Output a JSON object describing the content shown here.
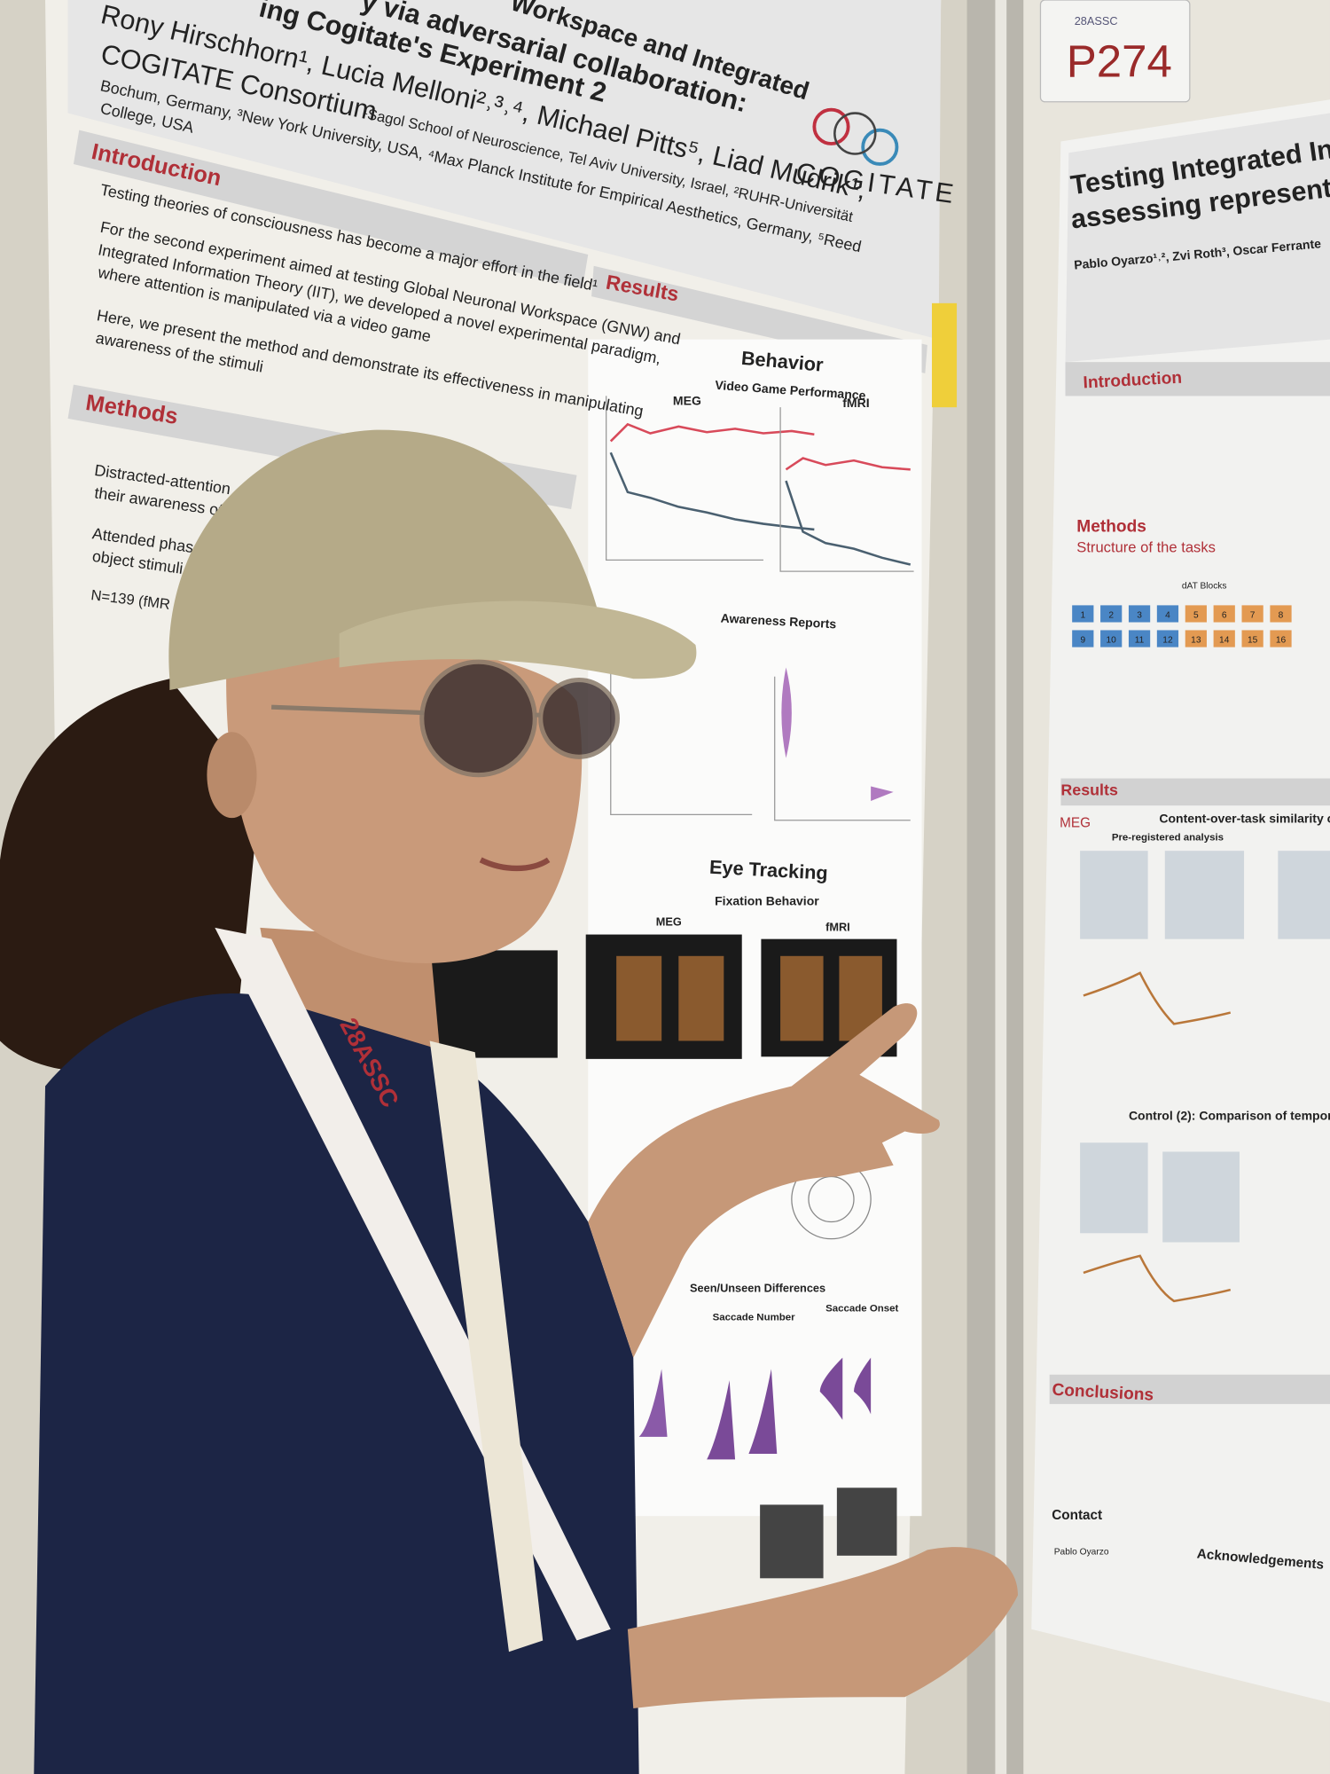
{
  "left_poster": {
    "title_lines": [
      "Workspace and Integrated",
      "y via adversarial collaboration:",
      "ing Cogitate's Experiment 2"
    ],
    "authors": "Rony Hirschhorn¹, Lucia Melloni²˒³˒⁴, Michael Pitts⁵, Liad Mudrik¹,",
    "consortium": "COGITATE Consortium",
    "affiliations": [
      "¹Sagol School of Neuroscience, Tel Aviv University, Israel, ²RUHR-Universität",
      "Bochum, Germany, ³New York University, USA, ⁴Max Planck Institute for Empirical Aesthetics, Germany, ⁵Reed",
      "College, USA"
    ],
    "logo": "COGITATE",
    "introduction": {
      "heading": "Introduction",
      "lines": [
        "Testing theories of consciousness has become a major effort in the field¹",
        "For the second experiment aimed at testing Global Neuronal Workspace (GNW) and",
        "Integrated Information Theory (IIT), we developed a novel experimental paradigm,",
        "where attention is manipulated via a video game",
        "Here, we present the method and demonstrate its effectiveness in manipulating",
        "awareness of the stimuli"
      ]
    },
    "methods": {
      "heading": "Methods",
      "lines": [
        "Distracted-attention",
        "their awareness of",
        "Attended phas",
        "object stimuli",
        "N=139 (fMR"
      ]
    },
    "results": {
      "heading": "Results",
      "behavior": "Behavior",
      "video_game": "Video Game Performance",
      "meg": "MEG",
      "fmri": "fMRI",
      "awareness": "Awareness Reports",
      "eye_tracking": "Eye Tracking",
      "fixation": "Fixation Behavior",
      "seen_unseen": "Seen/Unseen Differences",
      "saccade_number": "Saccade Number",
      "saccade_onset": "Saccade Onset"
    }
  },
  "sign": {
    "conference": "28ASSC",
    "number": "P274"
  },
  "right_poster": {
    "title_lines": [
      "Testing Integrated In",
      "assessing representa"
    ],
    "authors": "Pablo Oyarzo¹˒², Zvi Roth³, Oscar Ferrante",
    "introduction": "Introduction",
    "methods": "Methods",
    "structure": "Structure of the tasks",
    "blocks_label": "dAT Blocks",
    "blocks": [
      "1",
      "2",
      "3",
      "4",
      "5",
      "6",
      "7",
      "8",
      "9",
      "10",
      "11",
      "12",
      "13",
      "14",
      "15",
      "16"
    ],
    "results": "Results",
    "meg": "MEG",
    "content_over_task": "Content-over-task similarity c",
    "preregistered": "Pre-registered analysis",
    "control": "Control (2): Comparison of tempora",
    "conclusions": "Conclusions",
    "contact": "Contact",
    "contact_name": "Pablo Oyarzo",
    "acknowledgements": "Acknowledgements"
  },
  "lanyard": "28ASSC"
}
